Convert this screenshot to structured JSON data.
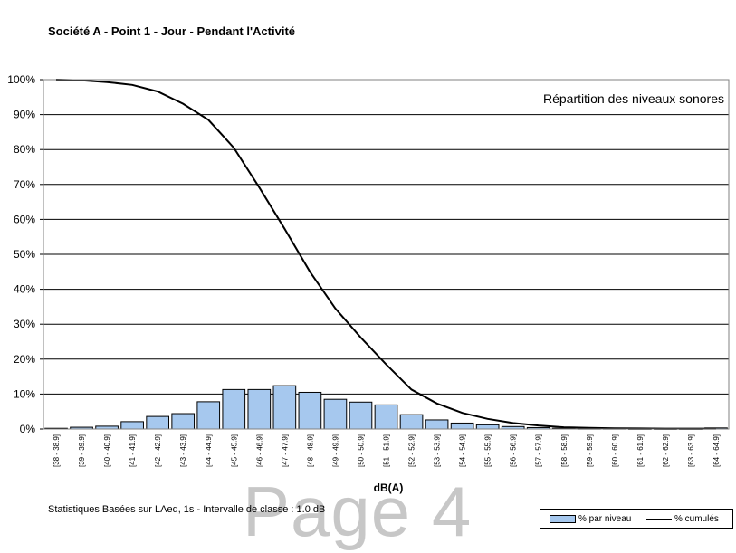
{
  "page": {
    "title": "Société A - Point 1 - Jour - Pendant l'Activité",
    "footnote": "Statistiques Basées sur LAeq, 1s - Intervalle de classe : 1.0 dB",
    "watermark": "Page 4"
  },
  "chart_data": {
    "type": "bar",
    "inset_label": "Répartition des niveaux sonores",
    "xlabel": "dB(A)",
    "ylabel": "",
    "ylim": [
      0,
      100
    ],
    "yticks": [
      "0%",
      "10%",
      "20%",
      "30%",
      "40%",
      "50%",
      "60%",
      "70%",
      "80%",
      "90%",
      "100%"
    ],
    "grid": true,
    "legend_position": "bottom-right",
    "colors": {
      "bars": "#a6c8ee",
      "line": "#000000"
    },
    "categories": [
      "[38 - 38.9]",
      "[39 - 39.9]",
      "[40 - 40.9]",
      "[41 - 41.9]",
      "[42 - 42.9]",
      "[43 - 43.9]",
      "[44 - 44.9]",
      "[45 - 45.9]",
      "[46 - 46.9]",
      "[47 - 47.9]",
      "[48 - 48.9]",
      "[49 - 49.9]",
      "[50 - 50.9]",
      "[51 - 51.9]",
      "[52 - 52.9]",
      "[53 - 53.9]",
      "[54 - 54.9]",
      "[55 - 55.9]",
      "[56 - 56.9]",
      "[57 - 57.9]",
      "[58 - 58.9]",
      "[59 - 59.9]",
      "[60 - 60.9]",
      "[61 - 61.9]",
      "[62 - 62.9]",
      "[63 - 63.9]",
      "[64 - 64.9]"
    ],
    "series": [
      {
        "name": "% par niveau",
        "type": "bar",
        "values": [
          0.2,
          0.5,
          0.8,
          2.1,
          3.6,
          4.4,
          7.8,
          11.3,
          11.3,
          12.4,
          10.5,
          8.5,
          7.7,
          6.9,
          4.1,
          2.6,
          1.7,
          1.2,
          0.7,
          0.4,
          0.2,
          0.1,
          0.1,
          0.05,
          0.05,
          0.05,
          0.3
        ]
      },
      {
        "name": "% cumulés",
        "type": "line",
        "values": [
          100,
          99.8,
          99.3,
          98.5,
          96.6,
          93.1,
          88.5,
          80.5,
          69.2,
          57.3,
          45.0,
          34.5,
          26.2,
          18.5,
          11.3,
          7.3,
          4.6,
          2.9,
          1.7,
          1.0,
          0.5,
          0.3,
          0.2,
          0.15,
          0.1,
          0.1,
          0.1
        ]
      }
    ]
  }
}
